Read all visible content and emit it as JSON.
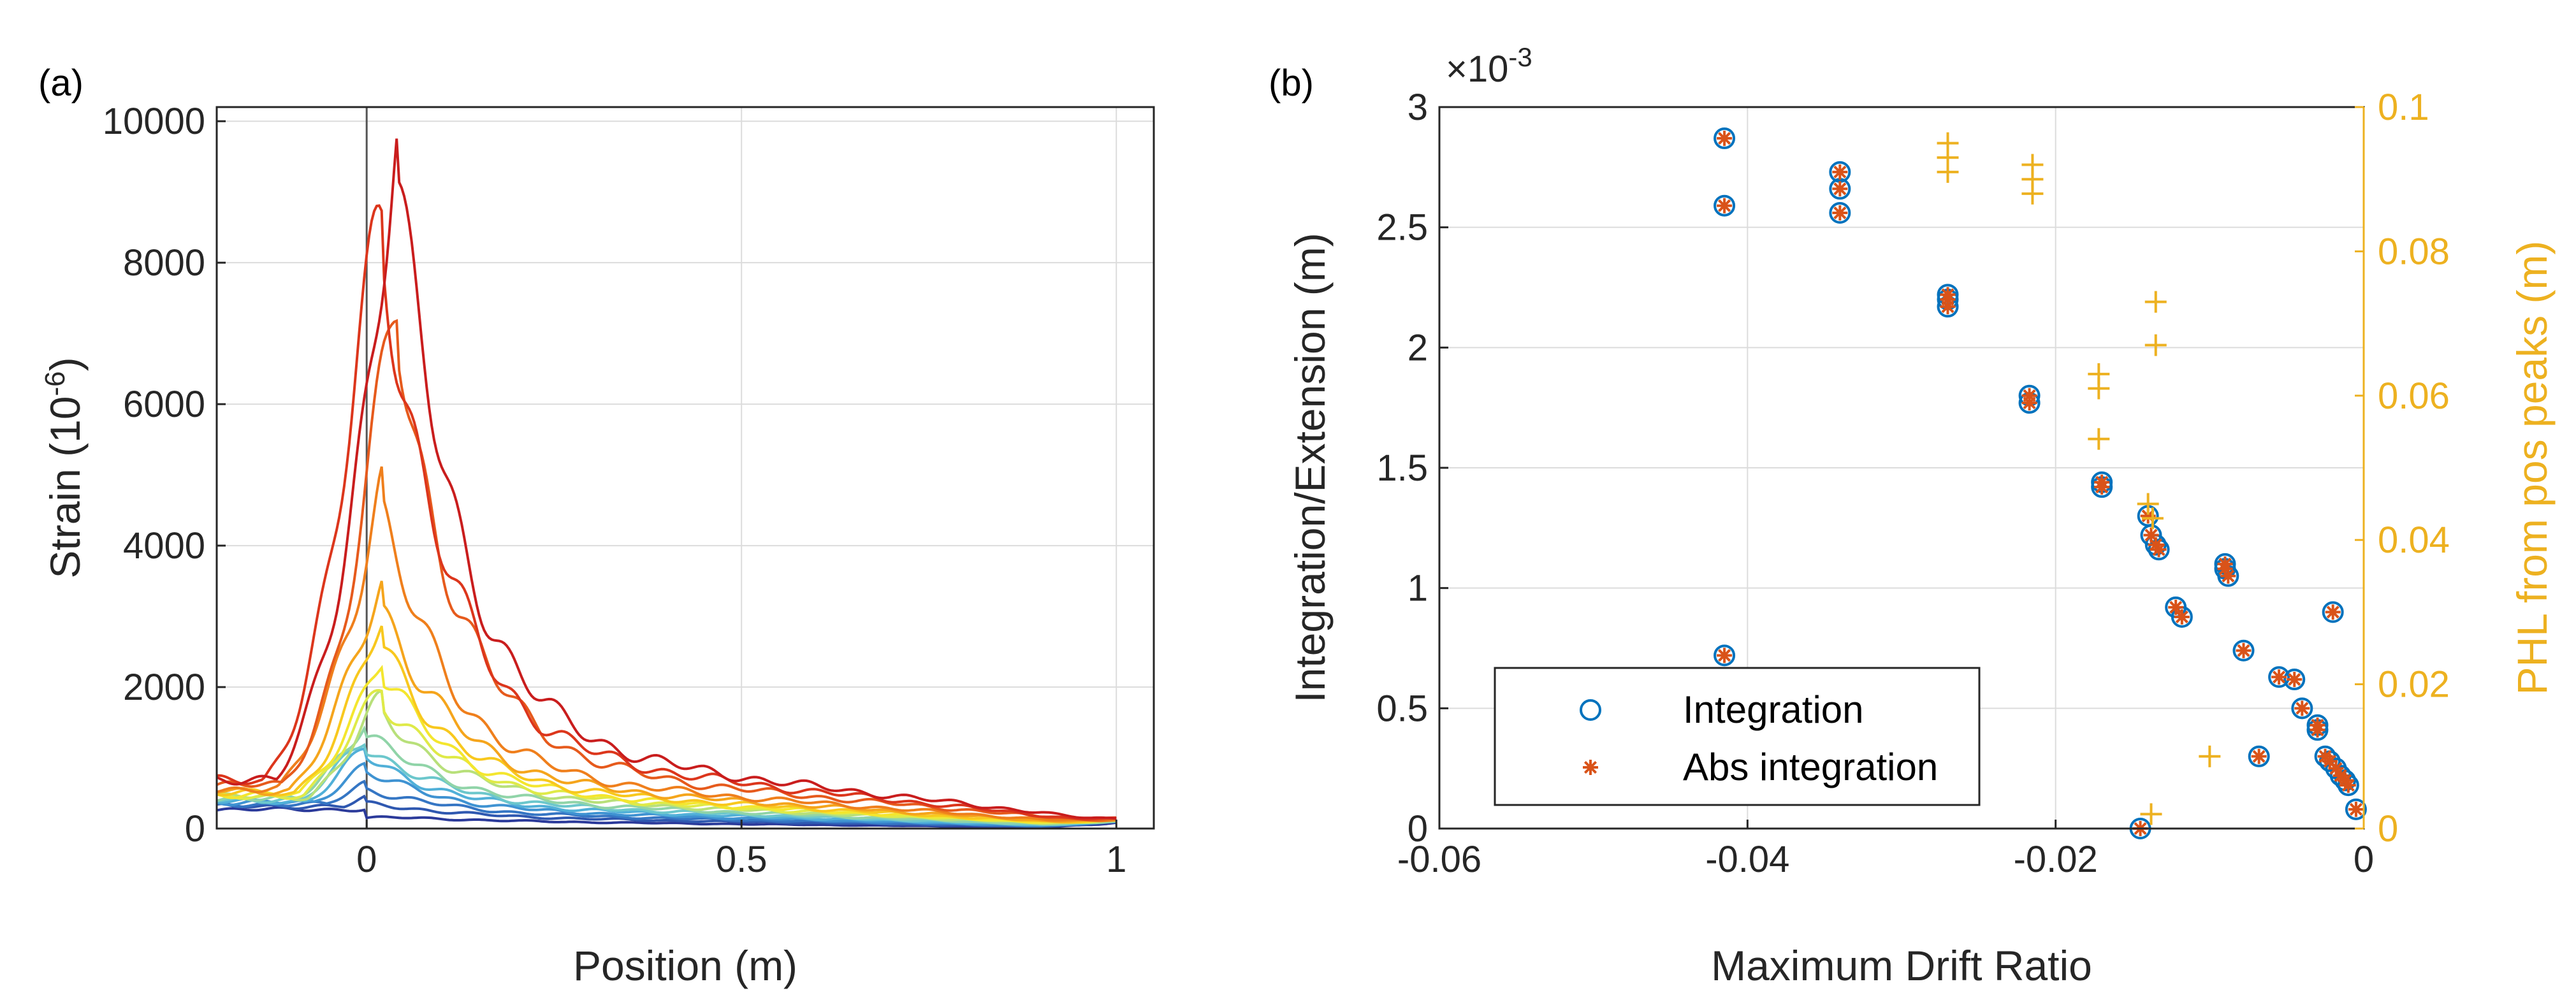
{
  "chart_data": [
    {
      "panel_label": "(a)",
      "type": "line",
      "xlabel": "Position (m)",
      "ylabel": "Strain (10-6)",
      "ylabel_parts": [
        "Strain (10",
        "-6",
        ")"
      ],
      "xlim": [
        -0.2,
        1.05
      ],
      "ylim": [
        0,
        10200
      ],
      "xticks": [
        0,
        0.5,
        1
      ],
      "xtick_labels": [
        "0",
        "0.5",
        "1"
      ],
      "yticks": [
        0,
        2000,
        4000,
        6000,
        8000,
        10000
      ],
      "ytick_labels": [
        "0",
        "2000",
        "4000",
        "6000",
        "8000",
        "10000"
      ],
      "grid": true,
      "vertical_line_x": 0,
      "series_colors": [
        "#2b3a9a",
        "#2f58b0",
        "#3576c4",
        "#3f93d2",
        "#51b0d8",
        "#6cc7cc",
        "#90d4a8",
        "#b8e07a",
        "#dfea48",
        "#f4e62e",
        "#f8c81e",
        "#f5a51c",
        "#ef7f1c",
        "#e65a1c",
        "#dc361c",
        "#c91d1d"
      ],
      "series": [
        {
          "peak_x": 0.0,
          "peak": 150,
          "tail": 120,
          "end": 80
        },
        {
          "peak_x": 0.0,
          "peak": 350,
          "tail": 180,
          "end": 90
        },
        {
          "peak_x": 0.0,
          "peak": 550,
          "tail": 230,
          "end": 95
        },
        {
          "peak_x": 0.0,
          "peak": 800,
          "tail": 280,
          "end": 100
        },
        {
          "peak_x": 0.0,
          "peak": 1000,
          "tail": 330,
          "end": 100
        },
        {
          "peak_x": 0.0,
          "peak": 1150,
          "tail": 380,
          "end": 105
        },
        {
          "peak_x": 0.0,
          "peak": 1350,
          "tail": 430,
          "end": 105
        },
        {
          "peak_x": 0.02,
          "peak": 1600,
          "tail": 480,
          "end": 110
        },
        {
          "peak_x": 0.02,
          "peak": 1850,
          "tail": 520,
          "end": 110
        },
        {
          "peak_x": 0.02,
          "peak": 2200,
          "tail": 560,
          "end": 115
        },
        {
          "peak_x": 0.02,
          "peak": 2600,
          "tail": 620,
          "end": 115
        },
        {
          "peak_x": 0.02,
          "peak": 3200,
          "tail": 700,
          "end": 120
        },
        {
          "peak_x": 0.02,
          "peak": 4500,
          "tail": 800,
          "end": 120
        },
        {
          "peak_x": 0.04,
          "peak": 7000,
          "tail": 950,
          "end": 125
        },
        {
          "peak_x": 0.02,
          "peak": 8500,
          "tail": 1150,
          "end": 130
        },
        {
          "peak_x": 0.04,
          "peak": 9200,
          "tail": 1250,
          "end": 130
        }
      ]
    },
    {
      "panel_label": "(b)",
      "type": "scatter",
      "xlabel": "Maximum Drift Ratio",
      "ylabel": "Integration/Extension (m)",
      "y2label": "PHL from pos peaks (m)",
      "exponent_label": "×10-3",
      "exponent_parts": [
        "×10",
        "-3"
      ],
      "xlim": [
        -0.06,
        0
      ],
      "ylim": [
        0,
        3
      ],
      "y2lim": [
        0,
        0.1
      ],
      "xticks": [
        -0.06,
        -0.04,
        -0.02,
        0
      ],
      "xtick_labels": [
        "-0.06",
        "-0.04",
        "-0.02",
        "0"
      ],
      "yticks": [
        0,
        0.5,
        1,
        1.5,
        2,
        2.5,
        3
      ],
      "ytick_labels": [
        "0",
        "0.5",
        "1",
        "1.5",
        "2",
        "2.5",
        "3"
      ],
      "y2ticks": [
        0,
        0.02,
        0.04,
        0.06,
        0.08,
        0.1
      ],
      "y2tick_labels": [
        "0",
        "0.02",
        "0.04",
        "0.06",
        "0.08",
        "0.1"
      ],
      "grid": true,
      "legend_position": "bottom-left",
      "series": [
        {
          "name": "Integration",
          "marker": "circle",
          "color": "#0072bd",
          "x": [
            -0.0415,
            -0.0415,
            -0.0415,
            -0.034,
            -0.034,
            -0.034,
            -0.027,
            -0.027,
            -0.027,
            -0.0217,
            -0.0217,
            -0.017,
            -0.017,
            -0.0145,
            -0.014,
            -0.0138,
            -0.0135,
            -0.0133,
            -0.0122,
            -0.0118,
            -0.009,
            -0.009,
            -0.0088,
            -0.0078,
            -0.0068,
            -0.0055,
            -0.0045,
            -0.004,
            -0.003,
            -0.003,
            -0.0025,
            -0.0022,
            -0.002,
            -0.0018,
            -0.0015,
            -0.0012,
            -0.001,
            -0.0005
          ],
          "y": [
            2.87,
            2.59,
            0.72,
            2.73,
            2.66,
            2.56,
            2.22,
            2.2,
            2.17,
            1.8,
            1.77,
            1.44,
            1.42,
            0.0,
            1.3,
            1.22,
            1.18,
            1.16,
            0.92,
            0.88,
            1.1,
            1.08,
            1.05,
            0.74,
            0.3,
            0.63,
            0.62,
            0.5,
            0.43,
            0.41,
            0.3,
            0.28,
            0.9,
            0.25,
            0.22,
            0.2,
            0.18,
            0.08
          ]
        },
        {
          "name": "Abs integration",
          "marker": "asterisk",
          "color": "#d95319",
          "x": [
            -0.0415,
            -0.0415,
            -0.0415,
            -0.034,
            -0.034,
            -0.034,
            -0.027,
            -0.027,
            -0.027,
            -0.0217,
            -0.0217,
            -0.017,
            -0.017,
            -0.0145,
            -0.014,
            -0.0138,
            -0.0135,
            -0.0133,
            -0.0122,
            -0.0118,
            -0.009,
            -0.009,
            -0.0088,
            -0.0078,
            -0.0068,
            -0.0055,
            -0.0045,
            -0.004,
            -0.003,
            -0.003,
            -0.0025,
            -0.0022,
            -0.002,
            -0.0018,
            -0.0015,
            -0.0012,
            -0.001,
            -0.0005
          ],
          "y": [
            2.87,
            2.59,
            0.72,
            2.73,
            2.66,
            2.56,
            2.22,
            2.2,
            2.17,
            1.8,
            1.77,
            1.44,
            1.42,
            0.0,
            1.3,
            1.22,
            1.18,
            1.16,
            0.92,
            0.88,
            1.1,
            1.08,
            1.05,
            0.74,
            0.3,
            0.63,
            0.62,
            0.5,
            0.43,
            0.41,
            0.3,
            0.28,
            0.9,
            0.25,
            0.22,
            0.2,
            0.18,
            0.08
          ]
        },
        {
          "name": "",
          "marker": "plus",
          "axis": "right",
          "color": "#edb120",
          "x": [
            -0.027,
            -0.027,
            -0.027,
            -0.0215,
            -0.0215,
            -0.0215,
            -0.0172,
            -0.0172,
            -0.0172,
            -0.0135,
            -0.0135,
            -0.014,
            -0.0137,
            -0.0138,
            -0.01
          ],
          "y": [
            0.095,
            0.093,
            0.091,
            0.092,
            0.09,
            0.088,
            0.063,
            0.061,
            0.054,
            0.073,
            0.067,
            0.045,
            0.043,
            0.002,
            0.01
          ]
        }
      ]
    }
  ]
}
